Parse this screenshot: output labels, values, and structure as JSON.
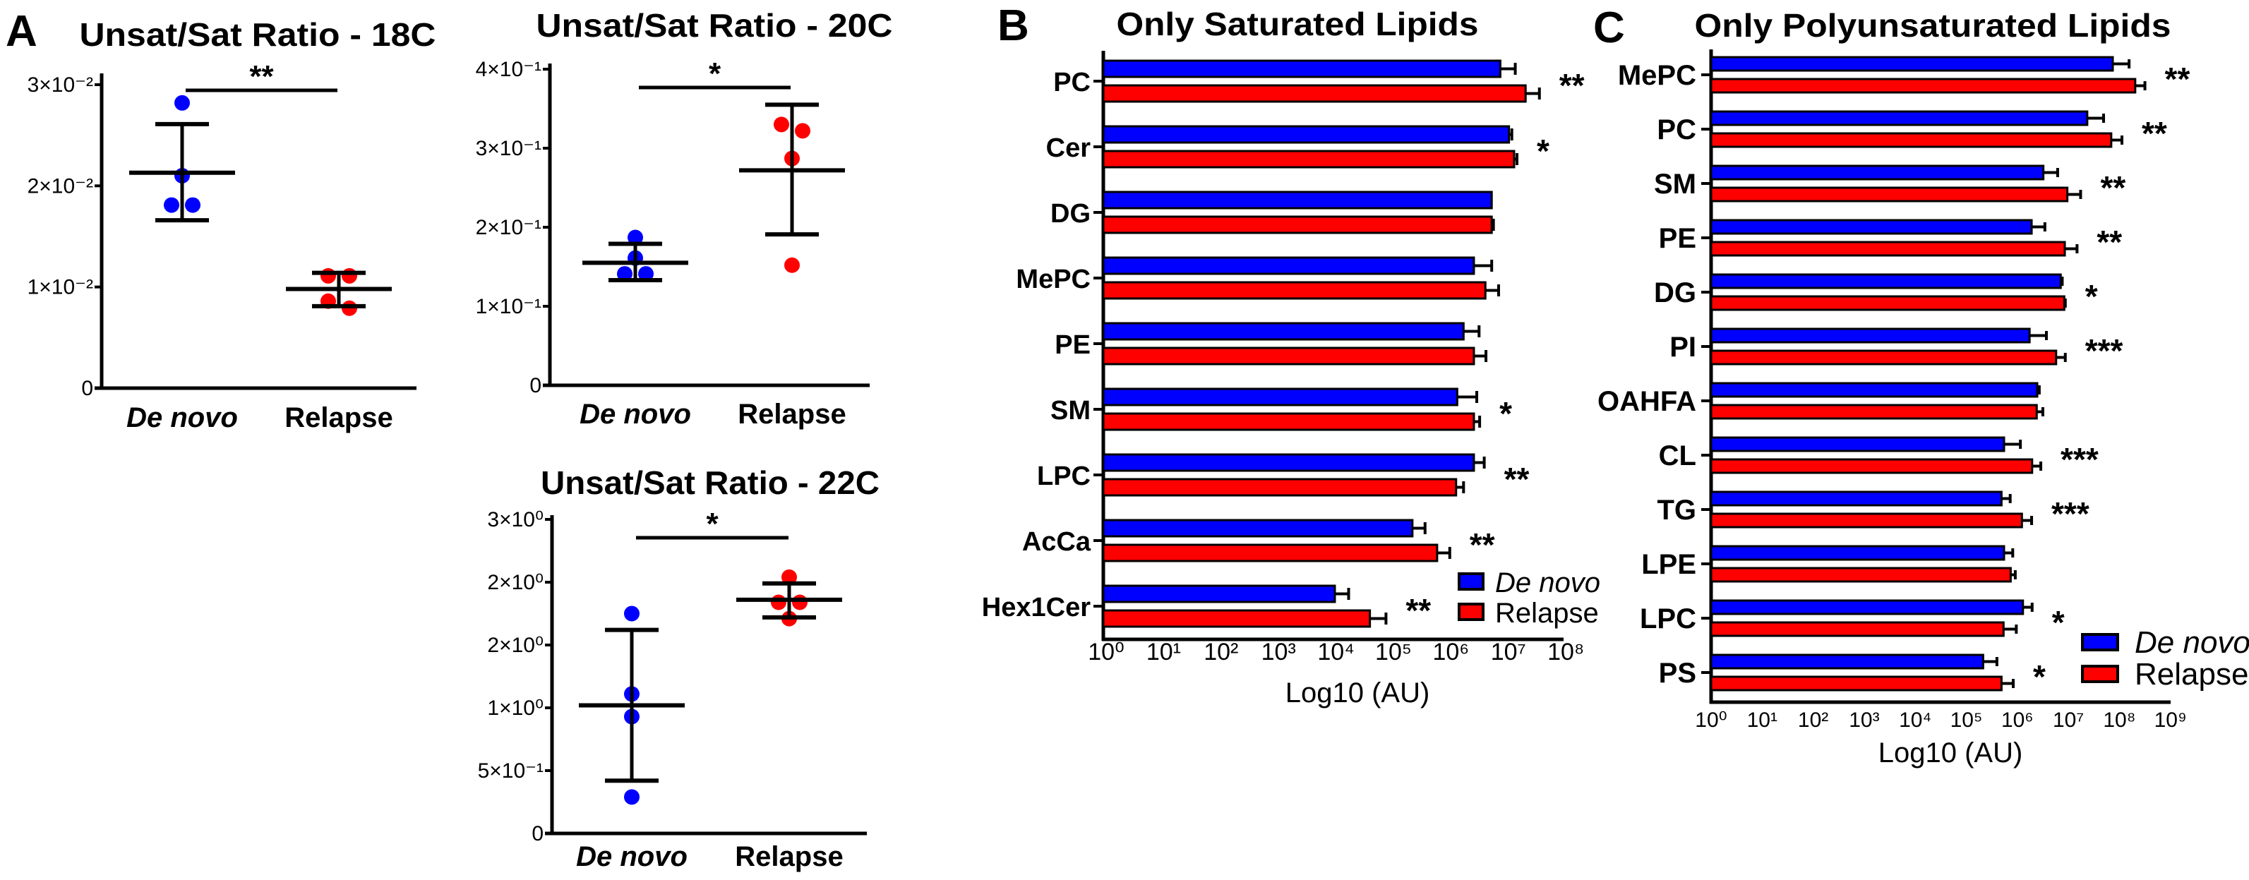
{
  "panel_labels": [
    "A",
    "B",
    "C"
  ],
  "colors": {
    "de_novo": "#0000ff",
    "relapse": "#ff0000",
    "axis": "#000000"
  },
  "chart_data": [
    {
      "type": "scatter",
      "panel": "A",
      "title": "Unsat/Sat Ratio - 18C",
      "categories": [
        "De novo",
        "Relapse"
      ],
      "ylim": [
        0,
        0.03
      ],
      "yticks": [
        0,
        0.01,
        0.02,
        0.03
      ],
      "ytick_labels": [
        "0",
        "1×10⁻²",
        "2×10⁻²",
        "3×10⁻²"
      ],
      "series": [
        {
          "name": "De novo",
          "points": [
            0.0282,
            0.021,
            0.0181,
            0.0181
          ],
          "mean": 0.0213,
          "sd_upper": 0.0261,
          "sd_lower": 0.0166
        },
        {
          "name": "Relapse",
          "points": [
            0.0111,
            0.0111,
            0.0086,
            0.0079
          ],
          "mean": 0.0098,
          "sd_upper": 0.0114,
          "sd_lower": 0.0081
        }
      ],
      "significance": "**"
    },
    {
      "type": "scatter",
      "panel": "A",
      "title": "Unsat/Sat Ratio - 20C",
      "categories": [
        "De novo",
        "Relapse"
      ],
      "ylim": [
        0,
        0.4
      ],
      "yticks": [
        0,
        0.1,
        0.2,
        0.3,
        0.4
      ],
      "ytick_labels": [
        "0",
        "1×10⁻¹",
        "2×10⁻¹",
        "3×10⁻¹",
        "4×10⁻¹"
      ],
      "series": [
        {
          "name": "De novo",
          "points": [
            0.187,
            0.161,
            0.141,
            0.141
          ],
          "mean": 0.155,
          "sd_upper": 0.179,
          "sd_lower": 0.133
        },
        {
          "name": "Relapse",
          "points": [
            0.33,
            0.322,
            0.287,
            0.152
          ],
          "mean": 0.272,
          "sd_upper": 0.355,
          "sd_lower": 0.191
        }
      ],
      "significance": "*"
    },
    {
      "type": "scatter",
      "panel": "A",
      "title": "Unsat/Sat Ratio - 22C",
      "categories": [
        "De novo",
        "Relapse"
      ],
      "ylim": [
        0,
        2.5
      ],
      "yticks": [
        0,
        0.5,
        1.0,
        1.5,
        2.0,
        2.5
      ],
      "ytick_labels": [
        "0",
        "5×10⁻¹",
        "1×10⁰",
        "2×10⁰",
        "2×10⁰",
        "3×10⁰"
      ],
      "series": [
        {
          "name": "De novo",
          "points": [
            1.75,
            1.11,
            0.93,
            0.29
          ],
          "mean": 1.02,
          "sd_upper": 1.62,
          "sd_lower": 0.42
        },
        {
          "name": "Relapse",
          "points": [
            2.04,
            1.84,
            1.84,
            1.71
          ],
          "mean": 1.86,
          "sd_upper": 1.99,
          "sd_lower": 1.72
        }
      ],
      "significance": "*"
    },
    {
      "type": "bar",
      "orientation": "horizontal",
      "panel": "B",
      "title": "Only Saturated Lipids",
      "xlabel": "Log10 (AU)",
      "xscale": "log10",
      "xlim_exponent": [
        0,
        8
      ],
      "xtick_labels": [
        "10⁰",
        "10¹",
        "10²",
        "10³",
        "10⁴",
        "10⁵",
        "10⁶",
        "10⁷",
        "10⁸"
      ],
      "categories": [
        "PC",
        "Cer",
        "DG",
        "MePC",
        "PE",
        "SM",
        "LPC",
        "AcCa",
        "Hex1Cer"
      ],
      "series": [
        {
          "name": "De novo",
          "log10_values": [
            6.86,
            7.01,
            6.71,
            6.4,
            6.22,
            6.11,
            6.4,
            5.33,
            3.98
          ],
          "log10_error_upper": [
            7.12,
            7.06,
            6.71,
            6.71,
            6.49,
            6.45,
            6.58,
            5.55,
            4.22
          ]
        },
        {
          "name": "Relapse",
          "log10_values": [
            7.3,
            7.1,
            6.71,
            6.6,
            6.4,
            6.4,
            6.09,
            5.76,
            4.59
          ],
          "log10_error_upper": [
            7.54,
            7.15,
            6.74,
            6.83,
            6.61,
            6.5,
            6.22,
            5.98,
            4.87
          ]
        }
      ],
      "significance": [
        "**",
        "*",
        "",
        "",
        "",
        "*",
        "**",
        "**",
        "**"
      ],
      "legend": {
        "position": "bottom-right",
        "entries": [
          "De novo",
          "Relapse"
        ]
      }
    },
    {
      "type": "bar",
      "orientation": "horizontal",
      "panel": "C",
      "title": "Only Polyunsaturated Lipids",
      "xlabel": "Log10 (AU)",
      "xscale": "log10",
      "xlim_exponent": [
        0,
        9
      ],
      "xtick_labels": [
        "10⁰",
        "10¹",
        "10²",
        "10³",
        "10⁴",
        "10⁵",
        "10⁶",
        "10⁷",
        "10⁸",
        "10⁹"
      ],
      "categories": [
        "MePC",
        "PC",
        "SM",
        "PE",
        "DG",
        "PI",
        "OAHFA",
        "CL",
        "TG",
        "LPE",
        "LPC",
        "PS"
      ],
      "series": [
        {
          "name": "De novo",
          "log10_values": [
            7.87,
            7.37,
            6.51,
            6.28,
            6.85,
            6.24,
            6.39,
            5.74,
            5.69,
            5.74,
            6.11,
            5.33
          ],
          "log10_error_upper": [
            8.19,
            7.69,
            6.79,
            6.54,
            6.88,
            6.57,
            6.43,
            6.06,
            5.86,
            5.91,
            6.29,
            5.6
          ]
        },
        {
          "name": "Relapse",
          "log10_values": [
            8.31,
            7.84,
            6.98,
            6.93,
            6.92,
            6.76,
            6.38,
            6.29,
            6.09,
            5.87,
            5.73,
            5.69
          ],
          "log10_error_upper": [
            8.5,
            8.05,
            7.24,
            7.17,
            6.94,
            6.94,
            6.5,
            6.46,
            6.28,
            5.96,
            5.98,
            5.92
          ]
        }
      ],
      "significance": [
        "**",
        "**",
        "**",
        "**",
        "*",
        "***",
        "",
        "***",
        "***",
        "",
        "*",
        "*"
      ],
      "legend": {
        "position": "bottom-right",
        "entries": [
          "De novo",
          "Relapse"
        ]
      }
    }
  ]
}
